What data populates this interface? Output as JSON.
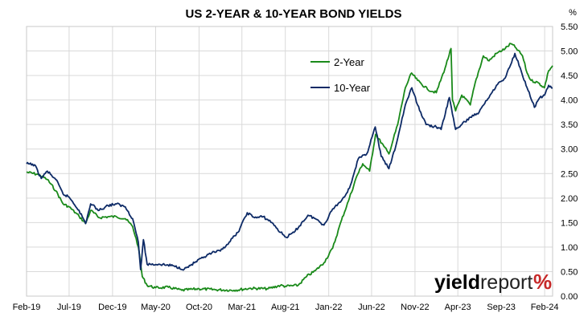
{
  "chart_data": {
    "type": "line",
    "title": "US 2-YEAR & 10-YEAR BOND YIELDS",
    "y_unit": "%",
    "ylim": [
      0,
      5.5
    ],
    "y_ticks": [
      "0.00",
      "0.50",
      "1.00",
      "1.50",
      "2.00",
      "2.50",
      "3.00",
      "3.50",
      "4.00",
      "4.50",
      "5.00",
      "5.50"
    ],
    "x_range": [
      "2019-02-01",
      "2024-02-29"
    ],
    "x_ticks": [
      {
        "label": "Feb-19",
        "date": "2019-02-01"
      },
      {
        "label": "Jul-19",
        "date": "2019-07-01"
      },
      {
        "label": "Dec-19",
        "date": "2019-12-01"
      },
      {
        "label": "May-20",
        "date": "2020-05-01"
      },
      {
        "label": "Oct-20",
        "date": "2020-10-01"
      },
      {
        "label": "Mar-21",
        "date": "2021-03-01"
      },
      {
        "label": "Aug-21",
        "date": "2021-08-01"
      },
      {
        "label": "Jan-22",
        "date": "2022-01-01"
      },
      {
        "label": "Jun-22",
        "date": "2022-06-01"
      },
      {
        "label": "Nov-22",
        "date": "2022-11-01"
      },
      {
        "label": "Apr-23",
        "date": "2023-04-01"
      },
      {
        "label": "Sep-23",
        "date": "2023-09-01"
      },
      {
        "label": "Feb-24",
        "date": "2024-02-01"
      }
    ],
    "grid": true,
    "legend_position": "top-right",
    "series": [
      {
        "name": "2-Year",
        "color": "#1a8a1a",
        "points": [
          [
            "2019-02-01",
            2.53
          ],
          [
            "2019-03-15",
            2.48
          ],
          [
            "2019-04-15",
            2.38
          ],
          [
            "2019-05-15",
            2.15
          ],
          [
            "2019-06-10",
            1.88
          ],
          [
            "2019-07-01",
            1.82
          ],
          [
            "2019-08-05",
            1.63
          ],
          [
            "2019-08-28",
            1.48
          ],
          [
            "2019-09-15",
            1.75
          ],
          [
            "2019-10-15",
            1.6
          ],
          [
            "2019-11-15",
            1.62
          ],
          [
            "2019-12-15",
            1.62
          ],
          [
            "2020-01-15",
            1.58
          ],
          [
            "2020-02-10",
            1.42
          ],
          [
            "2020-03-01",
            1.0
          ],
          [
            "2020-03-15",
            0.4
          ],
          [
            "2020-04-01",
            0.22
          ],
          [
            "2020-05-01",
            0.17
          ],
          [
            "2020-06-15",
            0.18
          ],
          [
            "2020-08-01",
            0.12
          ],
          [
            "2020-10-01",
            0.15
          ],
          [
            "2020-12-01",
            0.13
          ],
          [
            "2021-02-01",
            0.12
          ],
          [
            "2021-04-01",
            0.16
          ],
          [
            "2021-06-01",
            0.15
          ],
          [
            "2021-07-15",
            0.22
          ],
          [
            "2021-08-01",
            0.2
          ],
          [
            "2021-09-15",
            0.22
          ],
          [
            "2021-10-15",
            0.4
          ],
          [
            "2021-11-15",
            0.52
          ],
          [
            "2021-12-15",
            0.68
          ],
          [
            "2022-01-15",
            0.98
          ],
          [
            "2022-02-15",
            1.55
          ],
          [
            "2022-03-15",
            2.0
          ],
          [
            "2022-04-10",
            2.45
          ],
          [
            "2022-05-01",
            2.7
          ],
          [
            "2022-05-25",
            2.55
          ],
          [
            "2022-06-15",
            3.3
          ],
          [
            "2022-07-15",
            3.05
          ],
          [
            "2022-08-01",
            2.9
          ],
          [
            "2022-09-01",
            3.5
          ],
          [
            "2022-09-28",
            4.25
          ],
          [
            "2022-10-20",
            4.55
          ],
          [
            "2022-11-10",
            4.4
          ],
          [
            "2022-12-15",
            4.22
          ],
          [
            "2023-01-15",
            4.15
          ],
          [
            "2023-02-15",
            4.65
          ],
          [
            "2023-03-08",
            5.05
          ],
          [
            "2023-03-13",
            4.0
          ],
          [
            "2023-03-24",
            3.78
          ],
          [
            "2023-04-15",
            4.1
          ],
          [
            "2023-05-15",
            3.9
          ],
          [
            "2023-06-01",
            4.35
          ],
          [
            "2023-06-30",
            4.9
          ],
          [
            "2023-07-20",
            4.8
          ],
          [
            "2023-08-15",
            4.95
          ],
          [
            "2023-09-15",
            5.05
          ],
          [
            "2023-10-05",
            5.15
          ],
          [
            "2023-10-20",
            5.08
          ],
          [
            "2023-11-15",
            4.9
          ],
          [
            "2023-12-01",
            4.55
          ],
          [
            "2023-12-15",
            4.4
          ],
          [
            "2024-01-10",
            4.35
          ],
          [
            "2024-01-31",
            4.25
          ],
          [
            "2024-02-15",
            4.6
          ],
          [
            "2024-02-29",
            4.7
          ]
        ]
      },
      {
        "name": "10-Year",
        "color": "#0d2a66",
        "points": [
          [
            "2019-02-01",
            2.7
          ],
          [
            "2019-03-01",
            2.68
          ],
          [
            "2019-03-25",
            2.4
          ],
          [
            "2019-04-15",
            2.55
          ],
          [
            "2019-05-15",
            2.38
          ],
          [
            "2019-06-10",
            2.08
          ],
          [
            "2019-07-01",
            2.02
          ],
          [
            "2019-08-05",
            1.75
          ],
          [
            "2019-08-28",
            1.48
          ],
          [
            "2019-09-15",
            1.88
          ],
          [
            "2019-10-15",
            1.75
          ],
          [
            "2019-11-15",
            1.85
          ],
          [
            "2019-12-15",
            1.88
          ],
          [
            "2020-01-15",
            1.82
          ],
          [
            "2020-02-10",
            1.58
          ],
          [
            "2020-03-01",
            1.1
          ],
          [
            "2020-03-09",
            0.54
          ],
          [
            "2020-03-19",
            1.15
          ],
          [
            "2020-04-01",
            0.65
          ],
          [
            "2020-05-15",
            0.65
          ],
          [
            "2020-07-01",
            0.62
          ],
          [
            "2020-08-10",
            0.55
          ],
          [
            "2020-09-15",
            0.68
          ],
          [
            "2020-10-15",
            0.78
          ],
          [
            "2020-11-15",
            0.88
          ],
          [
            "2020-12-15",
            0.92
          ],
          [
            "2021-01-15",
            1.1
          ],
          [
            "2021-02-15",
            1.3
          ],
          [
            "2021-03-20",
            1.7
          ],
          [
            "2021-04-15",
            1.6
          ],
          [
            "2021-05-15",
            1.62
          ],
          [
            "2021-06-15",
            1.5
          ],
          [
            "2021-07-15",
            1.3
          ],
          [
            "2021-08-04",
            1.2
          ],
          [
            "2021-09-01",
            1.3
          ],
          [
            "2021-10-20",
            1.65
          ],
          [
            "2021-11-15",
            1.58
          ],
          [
            "2021-12-15",
            1.45
          ],
          [
            "2022-01-15",
            1.78
          ],
          [
            "2022-02-15",
            1.95
          ],
          [
            "2022-03-15",
            2.2
          ],
          [
            "2022-04-15",
            2.8
          ],
          [
            "2022-05-15",
            2.9
          ],
          [
            "2022-06-14",
            3.45
          ],
          [
            "2022-07-05",
            2.85
          ],
          [
            "2022-08-01",
            2.6
          ],
          [
            "2022-08-25",
            3.05
          ],
          [
            "2022-09-28",
            3.9
          ],
          [
            "2022-10-21",
            4.25
          ],
          [
            "2022-11-10",
            3.9
          ],
          [
            "2022-12-10",
            3.5
          ],
          [
            "2023-01-15",
            3.45
          ],
          [
            "2023-02-01",
            3.4
          ],
          [
            "2023-03-02",
            4.05
          ],
          [
            "2023-03-24",
            3.4
          ],
          [
            "2023-04-15",
            3.5
          ],
          [
            "2023-05-15",
            3.65
          ],
          [
            "2023-06-15",
            3.75
          ],
          [
            "2023-07-01",
            3.9
          ],
          [
            "2023-08-15",
            4.3
          ],
          [
            "2023-09-15",
            4.45
          ],
          [
            "2023-10-19",
            4.95
          ],
          [
            "2023-11-10",
            4.6
          ],
          [
            "2023-12-01",
            4.25
          ],
          [
            "2023-12-27",
            3.85
          ],
          [
            "2024-01-15",
            4.05
          ],
          [
            "2024-02-01",
            4.1
          ],
          [
            "2024-02-15",
            4.3
          ],
          [
            "2024-02-29",
            4.25
          ]
        ]
      }
    ]
  },
  "branding": {
    "logo_main": "yield",
    "logo_light": "report",
    "logo_symbol": "%"
  }
}
